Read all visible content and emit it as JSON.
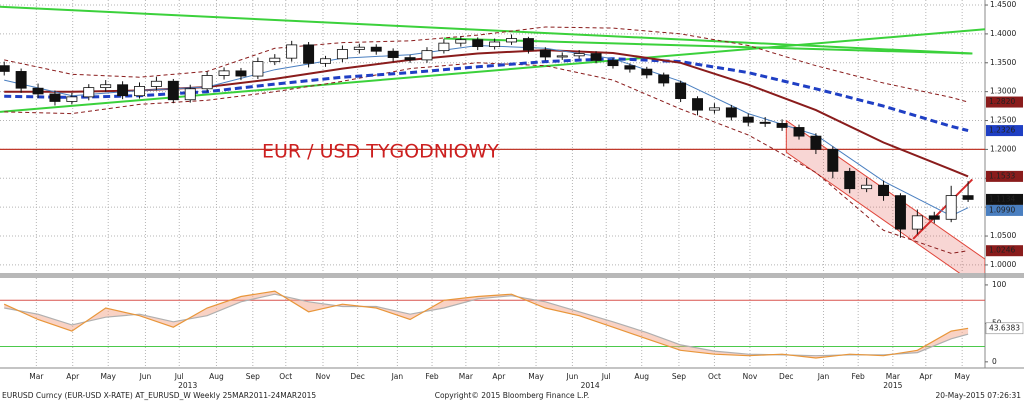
{
  "chart_data": {
    "type": "candlestick",
    "title": "EUR / USD TYGODNIOWY",
    "title_color": "#cc1f1f",
    "xlim": [
      -0.5,
      116
    ],
    "ylim": [
      0.986,
      1.4587
    ],
    "yticks": [
      {
        "value": 1.0,
        "label": "1.0000"
      },
      {
        "value": 1.05,
        "label": "1.0500"
      },
      {
        "value": 1.1,
        "label": "1.1000"
      },
      {
        "value": 1.15,
        "label": "1.1500"
      },
      {
        "value": 1.2,
        "label": "1.2000"
      },
      {
        "value": 1.25,
        "label": "1.2500"
      },
      {
        "value": 1.3,
        "label": "1.3000"
      },
      {
        "value": 1.35,
        "label": "1.3500"
      },
      {
        "value": 1.4,
        "label": "1.4000"
      },
      {
        "value": 1.45,
        "label": "1.4500"
      }
    ],
    "xticks": [
      {
        "value": 3.8,
        "label": "Mar"
      },
      {
        "value": 8.1,
        "label": "Apr"
      },
      {
        "value": 12.3,
        "label": "May"
      },
      {
        "value": 16.7,
        "label": "Jun"
      },
      {
        "value": 20.7,
        "label": "Jul"
      },
      {
        "value": 25.1,
        "label": "Aug"
      },
      {
        "value": 29.4,
        "label": "Sep"
      },
      {
        "value": 33.3,
        "label": "Oct"
      },
      {
        "value": 37.7,
        "label": "Nov"
      },
      {
        "value": 41.8,
        "label": "Dec"
      },
      {
        "value": 46.5,
        "label": "Jan"
      },
      {
        "value": 50.6,
        "label": "Feb"
      },
      {
        "value": 54.6,
        "label": "Mar"
      },
      {
        "value": 58.5,
        "label": "Apr"
      },
      {
        "value": 62.9,
        "label": "May"
      },
      {
        "value": 67.2,
        "label": "Jun"
      },
      {
        "value": 71.2,
        "label": "Jul"
      },
      {
        "value": 75.4,
        "label": "Aug"
      },
      {
        "value": 79.8,
        "label": "Sep"
      },
      {
        "value": 84.0,
        "label": "Oct"
      },
      {
        "value": 88.2,
        "label": "Nov"
      },
      {
        "value": 92.5,
        "label": "Dec"
      },
      {
        "value": 96.9,
        "label": "Jan"
      },
      {
        "value": 101.0,
        "label": "Feb"
      },
      {
        "value": 105.1,
        "label": "Mar"
      },
      {
        "value": 109.0,
        "label": "Apr"
      },
      {
        "value": 113.3,
        "label": "May"
      }
    ],
    "year_labels": [
      {
        "value": 21.7,
        "label": "2013"
      },
      {
        "value": 69.3,
        "label": "2014"
      },
      {
        "value": 105.1,
        "label": "2015"
      }
    ],
    "grid": true,
    "candles": {
      "x": [
        0,
        2,
        4,
        6,
        8,
        10,
        12,
        14,
        16,
        18,
        20,
        22,
        24,
        26,
        28,
        30,
        32,
        34,
        36,
        38,
        40,
        42,
        44,
        46,
        48,
        50,
        52,
        54,
        56,
        58,
        60,
        62,
        64,
        66,
        68,
        70,
        72,
        74,
        76,
        78,
        80,
        82,
        84,
        86,
        88,
        90,
        92,
        94,
        96,
        98,
        100,
        102,
        104,
        106,
        108,
        110,
        112,
        114
      ],
      "open": [
        1.345,
        1.335,
        1.306,
        1.296,
        1.283,
        1.291,
        1.307,
        1.312,
        1.293,
        1.309,
        1.318,
        1.286,
        1.305,
        1.328,
        1.336,
        1.327,
        1.352,
        1.358,
        1.381,
        1.349,
        1.357,
        1.373,
        1.377,
        1.37,
        1.359,
        1.355,
        1.371,
        1.384,
        1.39,
        1.378,
        1.386,
        1.392,
        1.372,
        1.36,
        1.362,
        1.366,
        1.354,
        1.345,
        1.339,
        1.329,
        1.315,
        1.288,
        1.268,
        1.272,
        1.256,
        1.247,
        1.245,
        1.238,
        1.223,
        1.2,
        1.162,
        1.132,
        1.138,
        1.12,
        1.062,
        1.085,
        1.079,
        1.12
      ],
      "high": [
        1.352,
        1.34,
        1.314,
        1.302,
        1.298,
        1.313,
        1.32,
        1.318,
        1.316,
        1.326,
        1.322,
        1.312,
        1.335,
        1.342,
        1.341,
        1.359,
        1.365,
        1.388,
        1.386,
        1.362,
        1.38,
        1.383,
        1.382,
        1.375,
        1.364,
        1.377,
        1.391,
        1.396,
        1.394,
        1.392,
        1.399,
        1.395,
        1.377,
        1.368,
        1.372,
        1.37,
        1.358,
        1.349,
        1.343,
        1.333,
        1.319,
        1.292,
        1.28,
        1.277,
        1.262,
        1.256,
        1.252,
        1.243,
        1.228,
        1.205,
        1.168,
        1.151,
        1.146,
        1.124,
        1.096,
        1.092,
        1.137,
        1.145
      ],
      "low": [
        1.328,
        1.298,
        1.289,
        1.276,
        1.278,
        1.285,
        1.3,
        1.287,
        1.288,
        1.302,
        1.28,
        1.281,
        1.3,
        1.321,
        1.32,
        1.322,
        1.346,
        1.352,
        1.342,
        1.343,
        1.351,
        1.366,
        1.364,
        1.352,
        1.35,
        1.35,
        1.366,
        1.378,
        1.372,
        1.373,
        1.381,
        1.366,
        1.354,
        1.355,
        1.357,
        1.349,
        1.34,
        1.333,
        1.323,
        1.309,
        1.282,
        1.259,
        1.262,
        1.25,
        1.24,
        1.239,
        1.232,
        1.217,
        1.192,
        1.15,
        1.124,
        1.126,
        1.111,
        1.047,
        1.053,
        1.072,
        1.074,
        1.109
      ],
      "close": [
        1.335,
        1.306,
        1.296,
        1.283,
        1.291,
        1.307,
        1.312,
        1.293,
        1.309,
        1.318,
        1.286,
        1.305,
        1.328,
        1.336,
        1.327,
        1.352,
        1.358,
        1.381,
        1.349,
        1.357,
        1.373,
        1.377,
        1.37,
        1.359,
        1.355,
        1.371,
        1.384,
        1.39,
        1.378,
        1.386,
        1.392,
        1.372,
        1.36,
        1.362,
        1.366,
        1.354,
        1.345,
        1.339,
        1.329,
        1.315,
        1.288,
        1.268,
        1.272,
        1.256,
        1.247,
        1.245,
        1.238,
        1.223,
        1.2,
        1.162,
        1.132,
        1.138,
        1.12,
        1.062,
        1.085,
        1.079,
        1.12,
        1.1134
      ],
      "last_label": "1.1134",
      "last_color": "#111111"
    },
    "line_x": [
      0,
      8,
      16,
      24,
      32,
      40,
      48,
      56,
      64,
      72,
      80,
      88,
      96,
      104,
      112,
      114
    ],
    "lines": [
      {
        "color": "#8a1c1c",
        "width": 1,
        "dash": "4 3",
        "values": [
          1.355,
          1.33,
          1.325,
          1.335,
          1.375,
          1.385,
          1.388,
          1.398,
          1.412,
          1.41,
          1.4,
          1.38,
          1.345,
          1.315,
          1.29,
          1.282
        ],
        "last_label": "1.2820"
      },
      {
        "color": "#8a1c1c",
        "width": 1,
        "dash": "4 3",
        "values": [
          1.265,
          1.262,
          1.278,
          1.285,
          1.3,
          1.318,
          1.34,
          1.35,
          1.345,
          1.32,
          1.27,
          1.225,
          1.16,
          1.06,
          1.02,
          1.0246
        ],
        "last_label": "1.0246"
      },
      {
        "color": "#1f3fc4",
        "width": 3,
        "dash": "7 4",
        "values": [
          1.292,
          1.29,
          1.293,
          1.3,
          1.313,
          1.325,
          1.333,
          1.343,
          1.352,
          1.357,
          1.352,
          1.333,
          1.305,
          1.275,
          1.24,
          1.2326
        ],
        "last_label": "1.2326"
      },
      {
        "color": "#8a1c1c",
        "width": 2,
        "dash": "",
        "values": [
          1.3,
          1.3,
          1.302,
          1.308,
          1.322,
          1.34,
          1.355,
          1.366,
          1.372,
          1.367,
          1.35,
          1.312,
          1.268,
          1.212,
          1.165,
          1.1533
        ],
        "last_label": "1.1533"
      },
      {
        "color": "#4a7fc0",
        "width": 1,
        "dash": "",
        "values": [
          1.32,
          1.293,
          1.302,
          1.308,
          1.338,
          1.358,
          1.364,
          1.38,
          1.375,
          1.357,
          1.318,
          1.262,
          1.225,
          1.145,
          1.085,
          1.099
        ],
        "last_label": "1.0990"
      }
    ],
    "trend_lines": [
      {
        "color": "#3bd13b",
        "x": [
          -0.5,
          114.5
        ],
        "values": [
          1.447,
          1.366
        ]
      },
      {
        "color": "#3bd13b",
        "x": [
          -0.5,
          116
        ],
        "values": [
          1.265,
          1.408
        ]
      },
      {
        "color": "#3bd13b",
        "x": [
          52,
          114.5
        ],
        "values": [
          1.392,
          1.366
        ]
      },
      {
        "color": "#d42a2a",
        "x": [
          107.5,
          114.5
        ],
        "values": [
          1.045,
          1.148
        ]
      }
    ],
    "hline": {
      "value": 1.2,
      "color": "#c0392b"
    },
    "channel": {
      "x": [
        92.5,
        116
      ],
      "upper": [
        1.25,
        1.01
      ],
      "lower": [
        1.195,
        0.955
      ],
      "color": "#e0453a"
    },
    "oscillator": {
      "ylim": [
        -8,
        109
      ],
      "yticks": [
        0,
        50,
        100
      ],
      "levels": [
        {
          "value": 80,
          "color": "#d9534f"
        },
        {
          "value": 20,
          "color": "#4cc94c"
        }
      ],
      "x": [
        0,
        4,
        8,
        12,
        16,
        20,
        24,
        28,
        32,
        36,
        40,
        44,
        48,
        52,
        56,
        60,
        64,
        68,
        72,
        76,
        80,
        84,
        88,
        92,
        96,
        100,
        104,
        108,
        112,
        114
      ],
      "k": [
        75,
        55,
        40,
        70,
        60,
        45,
        70,
        85,
        92,
        65,
        75,
        70,
        55,
        80,
        85,
        88,
        70,
        60,
        45,
        30,
        15,
        10,
        8,
        10,
        5,
        10,
        8,
        15,
        40,
        43.6383
      ],
      "d": [
        70,
        62,
        48,
        58,
        62,
        52,
        60,
        78,
        88,
        78,
        72,
        72,
        62,
        70,
        82,
        86,
        78,
        65,
        52,
        38,
        22,
        14,
        10,
        9,
        8,
        9,
        9,
        12,
        30,
        36
      ],
      "k_color": "#e8963a",
      "d_color": "#b0b0b0"
    }
  },
  "footer": {
    "left": "EURUSD Curncy (EUR-USD X-RATE) AT_EURUSD_W  Weekly 25MAR2011-24MAR2015",
    "center": "Copyright© 2015 Bloomberg Finance L.P.",
    "right": "20-May-2015 07:26:31"
  }
}
